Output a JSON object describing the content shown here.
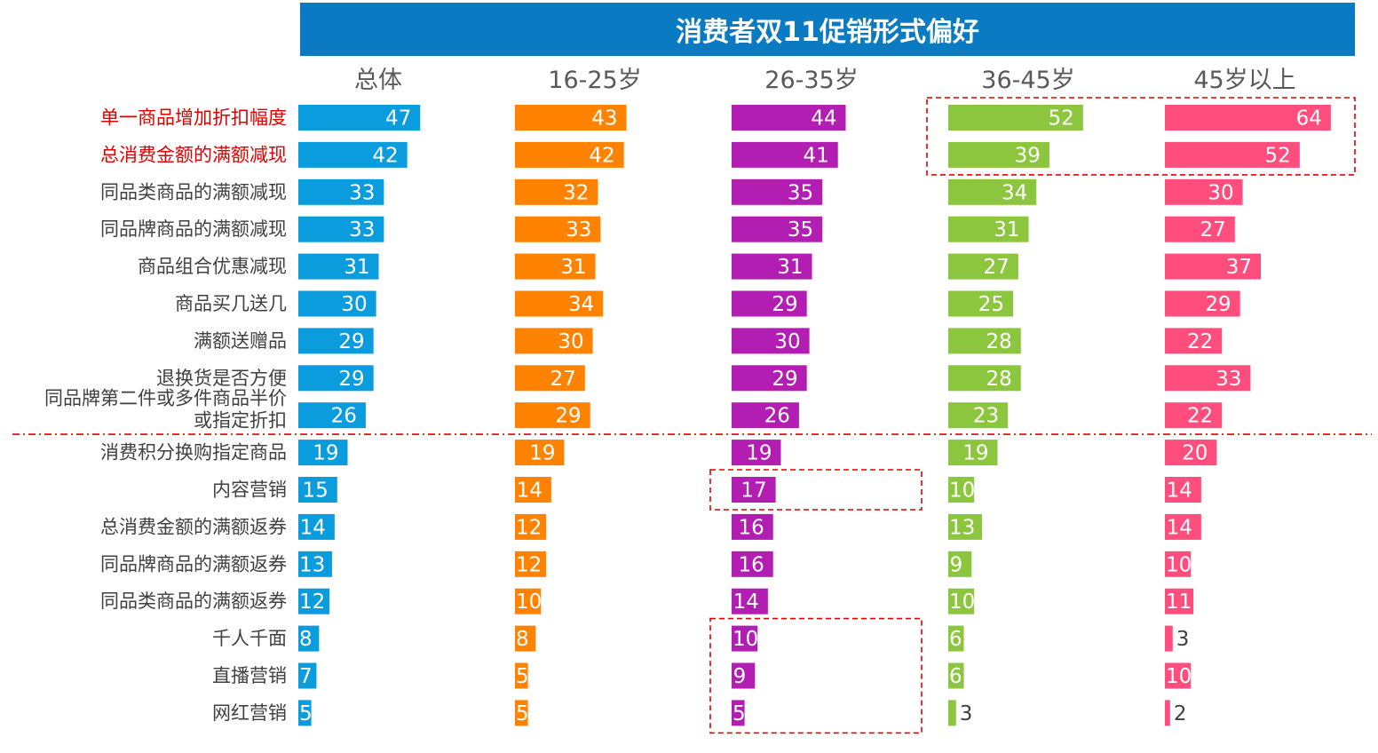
{
  "chart_data": {
    "type": "bar",
    "title": "消费者双11促销形式偏好",
    "columns": [
      "总体",
      "16-25岁",
      "26-35岁",
      "36-45岁",
      "45岁以上"
    ],
    "categories": [
      [
        "单一商品增加折扣幅度"
      ],
      [
        "总消费金额的满额减现"
      ],
      [
        "同品类商品的满额减现"
      ],
      [
        "同品牌商品的满额减现"
      ],
      [
        "商品组合优惠减现"
      ],
      [
        "商品买几送几"
      ],
      [
        "满额送赠品"
      ],
      [
        "退换货是否方便"
      ],
      [
        "同品牌第二件或多件商品半价",
        "或指定折扣"
      ],
      [
        "消费积分换购指定商品"
      ],
      [
        "内容营销"
      ],
      [
        "总消费金额的满额返券"
      ],
      [
        "同品牌商品的满额返券"
      ],
      [
        "同品类商品的满额返券"
      ],
      [
        "千人千面"
      ],
      [
        "直播营销"
      ],
      [
        "网红营销"
      ]
    ],
    "highlighted_categories": [
      0,
      1
    ],
    "series": [
      {
        "name": "总体",
        "color": "#0a9cdc",
        "values": [
          47,
          42,
          33,
          33,
          31,
          30,
          29,
          29,
          26,
          19,
          15,
          14,
          13,
          12,
          8,
          7,
          5
        ]
      },
      {
        "name": "16-25岁",
        "color": "#ff8200",
        "values": [
          43,
          42,
          32,
          33,
          31,
          34,
          30,
          27,
          29,
          19,
          14,
          12,
          12,
          10,
          8,
          5,
          5
        ]
      },
      {
        "name": "26-35岁",
        "color": "#b21eb2",
        "values": [
          44,
          41,
          35,
          35,
          31,
          29,
          30,
          29,
          26,
          19,
          17,
          16,
          16,
          14,
          10,
          9,
          5
        ]
      },
      {
        "name": "36-45岁",
        "color": "#8cc63f",
        "values": [
          52,
          39,
          34,
          31,
          27,
          25,
          28,
          28,
          23,
          19,
          10,
          13,
          9,
          10,
          6,
          6,
          3
        ]
      },
      {
        "name": "45岁以上",
        "color": "#ff4d7d",
        "values": [
          64,
          52,
          30,
          27,
          37,
          29,
          22,
          33,
          22,
          20,
          14,
          14,
          10,
          11,
          3,
          10,
          2
        ]
      }
    ],
    "divider_after_category": 8,
    "highlight_boxes": [
      {
        "columns": [
          3,
          4
        ],
        "categories": [
          0,
          1
        ]
      },
      {
        "columns": [
          2
        ],
        "categories": [
          10
        ]
      },
      {
        "columns": [
          2
        ],
        "categories": [
          14,
          15,
          16
        ]
      }
    ],
    "colors": {
      "title_bar": "#0a7bc2",
      "highlight_text": "#e00000",
      "dashed_line": "#e00000"
    }
  }
}
